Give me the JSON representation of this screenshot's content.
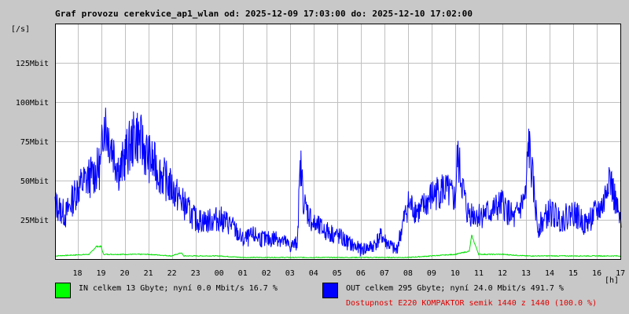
{
  "chart_data": {
    "type": "line",
    "title": "Graf provozu cerekvice_ap1_wlan od: 2025-12-09 17:03:00 do: 2025-12-10 17:02:00",
    "ylabel": "[/s]",
    "xlabel": "[h]",
    "ylim": [
      0,
      150
    ],
    "y_unit": "Mbit",
    "yticks": [
      25,
      50,
      75,
      100,
      125
    ],
    "ytick_labels": [
      "25Mbit",
      "50Mbit",
      "75Mbit",
      "100Mbit",
      "125Mbit"
    ],
    "xlim": [
      17.05,
      41.03
    ],
    "xticks": [
      18,
      19,
      20,
      21,
      22,
      23,
      24,
      25,
      26,
      27,
      28,
      29,
      30,
      31,
      32,
      33,
      34,
      35,
      36,
      37,
      38,
      39,
      40,
      41
    ],
    "xtick_labels": [
      "18",
      "19",
      "20",
      "21",
      "22",
      "23",
      "00",
      "01",
      "02",
      "03",
      "04",
      "05",
      "06",
      "07",
      "08",
      "09",
      "10",
      "11",
      "12",
      "13",
      "14",
      "15",
      "16",
      "17"
    ],
    "grid": true,
    "series": [
      {
        "name": "OUT",
        "color": "#0000ff",
        "x": [
          17.05,
          17.5,
          18.0,
          18.5,
          18.75,
          19.0,
          19.1,
          19.5,
          19.8,
          20.0,
          20.5,
          21.0,
          21.5,
          22.0,
          22.5,
          23.0,
          23.5,
          24.0,
          24.5,
          24.8,
          25.0,
          25.5,
          26.0,
          26.5,
          27.0,
          27.3,
          27.45,
          27.6,
          28.0,
          28.5,
          29.0,
          29.5,
          30.0,
          30.5,
          30.9,
          31.0,
          31.5,
          32.0,
          32.5,
          33.0,
          33.5,
          34.0,
          34.1,
          34.5,
          35.0,
          35.5,
          36.0,
          36.5,
          37.0,
          37.1,
          37.5,
          38.0,
          38.5,
          39.0,
          39.5,
          40.0,
          40.3,
          40.5,
          41.03
        ],
        "y": [
          35,
          28,
          45,
          52,
          55,
          60,
          90,
          70,
          55,
          65,
          80,
          65,
          55,
          45,
          35,
          25,
          24,
          26,
          22,
          16,
          12,
          15,
          12,
          14,
          8,
          10,
          60,
          35,
          22,
          18,
          15,
          10,
          6,
          8,
          15,
          12,
          5,
          35,
          30,
          40,
          45,
          38,
          65,
          30,
          28,
          30,
          35,
          25,
          40,
          75,
          20,
          30,
          25,
          30,
          22,
          30,
          35,
          55,
          20
        ]
      },
      {
        "name": "IN",
        "color": "#00e000",
        "x": [
          17.05,
          18.5,
          18.8,
          19.0,
          19.1,
          20.0,
          21.0,
          22.0,
          22.4,
          22.5,
          23.0,
          24.0,
          25.0,
          26.0,
          27.0,
          28.0,
          29.0,
          30.0,
          31.0,
          32.0,
          33.0,
          34.0,
          34.6,
          34.7,
          35.0,
          36.0,
          37.0,
          38.0,
          39.0,
          40.0,
          41.03
        ],
        "y": [
          2,
          3,
          8,
          8,
          3,
          3,
          3,
          2,
          4,
          2,
          2,
          2,
          1,
          1,
          1,
          1,
          1,
          1,
          1,
          1,
          2,
          3,
          5,
          15,
          3,
          3,
          2,
          2,
          2,
          2,
          2
        ]
      }
    ],
    "legend": [
      {
        "color": "#00ff00",
        "text": "IN celkem 13 Gbyte; nyní   0.0 Mbit/s 16.7 %"
      },
      {
        "color": "#0000ff",
        "text": "OUT celkem 295 Gbyte; nyní  24.0 Mbit/s 491.7 %"
      }
    ],
    "availability": {
      "text": "Dostupnost E220 KOMPAKTOR semik 1440 z 1440 (100.0 %)",
      "color": "#e00000"
    }
  }
}
